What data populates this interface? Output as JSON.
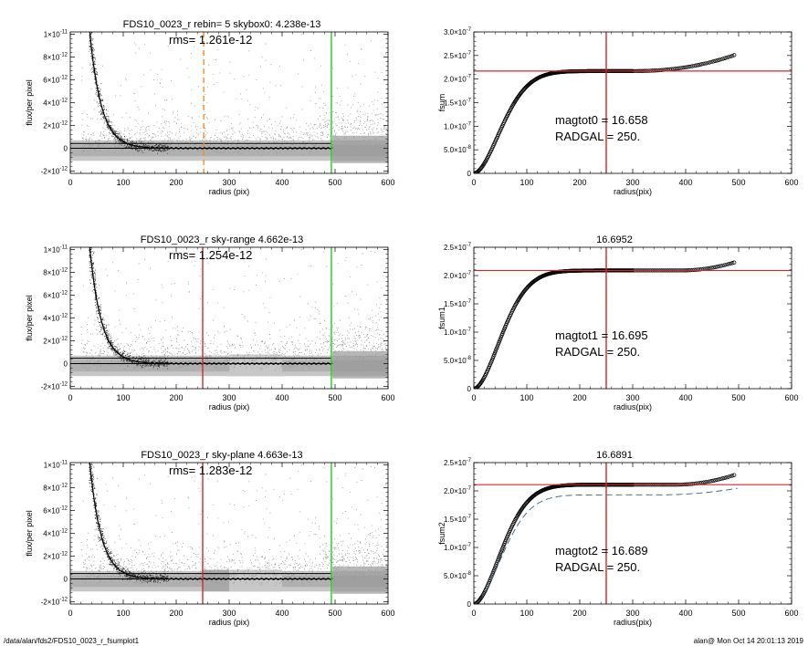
{
  "footer": {
    "path": "/data/alan/fds2/FDS10_0023_r_fsumplot1",
    "stamp": "alan@  Mon Oct 14 20:01:13 2019"
  },
  "colors": {
    "scatter_dark": "#333333",
    "scatter_gray": "#999999",
    "scatter_light": "#c8c8c8",
    "profile": "#000000",
    "orange_marker": "#ff8c1a",
    "red_marker": "#d62728",
    "green_marker": "#22cc22",
    "growth_points": "#000000",
    "dashed_curve": "#3a5f7a"
  },
  "chart_data": [
    {
      "type": "scatter",
      "title": "FDS10_0023_r rebin= 5    skybox0:  4.238e-13",
      "annotation": "rms= 1.261e-12",
      "xlabel": "radius (pix)",
      "ylabel": "flux/per pixel",
      "xlim": [
        0,
        600
      ],
      "ylim": [
        -2.2e-12,
        1.02e-11
      ],
      "xticks": [
        0,
        100,
        200,
        300,
        400,
        500,
        600
      ],
      "yticks": [
        -2e-12,
        0,
        2e-12,
        4e-12,
        6e-12,
        8e-12,
        1e-11
      ],
      "ytick_labels": [
        {
          "m": "-2×10",
          "e": "-12"
        },
        {
          "m": "0",
          "e": ""
        },
        {
          "m": "2×10",
          "e": "-12"
        },
        {
          "m": "4×10",
          "e": "-12"
        },
        {
          "m": "6×10",
          "e": "-12"
        },
        {
          "m": "8×10",
          "e": "-12"
        },
        {
          "m": "1×10",
          "e": "-11"
        }
      ],
      "profile_model": {
        "amplitude": 1.1e-11,
        "scale_radius": 22,
        "start_radius": 35,
        "end_radius": 495
      },
      "hlines": [
        {
          "y": 4.2e-13
        },
        {
          "y": 0
        }
      ],
      "vlines": [
        {
          "x": 252,
          "color": "orange",
          "style": "dashed"
        },
        {
          "x": 493,
          "color": "green",
          "style": "solid"
        }
      ],
      "shading_bands": []
    },
    {
      "type": "scatter",
      "title": "FDS10_0023_r sky-range  4.662e-13",
      "annotation": "rms= 1.254e-12",
      "xlabel": "radius (pix)",
      "ylabel": "flux/per pixel",
      "xlim": [
        0,
        600
      ],
      "ylim": [
        -2.2e-12,
        1.02e-11
      ],
      "xticks": [
        0,
        100,
        200,
        300,
        400,
        500,
        600
      ],
      "yticks": [
        -2e-12,
        0,
        2e-12,
        4e-12,
        6e-12,
        8e-12,
        1e-11
      ],
      "ytick_labels": [
        {
          "m": "-2×10",
          "e": "-12"
        },
        {
          "m": "0",
          "e": ""
        },
        {
          "m": "2×10",
          "e": "-12"
        },
        {
          "m": "4×10",
          "e": "-12"
        },
        {
          "m": "6×10",
          "e": "-12"
        },
        {
          "m": "8×10",
          "e": "-12"
        },
        {
          "m": "1×10",
          "e": "-11"
        }
      ],
      "profile_model": {
        "amplitude": 1.1e-11,
        "scale_radius": 22,
        "start_radius": 35,
        "end_radius": 495
      },
      "hlines": [
        {
          "y": 4.7e-13
        },
        {
          "y": 0
        }
      ],
      "vlines": [
        {
          "x": 250,
          "color": "red",
          "style": "solid"
        },
        {
          "x": 493,
          "color": "green",
          "style": "solid"
        }
      ],
      "shading_bands": [
        {
          "x0": 300,
          "x1": 400,
          "shade": "light"
        }
      ]
    },
    {
      "type": "scatter",
      "title": "FDS10_0023_r sky-plane  4.663e-13",
      "annotation": "rms= 1.283e-12",
      "xlabel": "radius (pix)",
      "ylabel": "flux/per pixel",
      "xlim": [
        0,
        600
      ],
      "ylim": [
        -2.2e-12,
        1.02e-11
      ],
      "xticks": [
        0,
        100,
        200,
        300,
        400,
        500,
        600
      ],
      "yticks": [
        -2e-12,
        0,
        2e-12,
        4e-12,
        6e-12,
        8e-12,
        1e-11
      ],
      "ytick_labels": [
        {
          "m": "-2×10",
          "e": "-12"
        },
        {
          "m": "0",
          "e": ""
        },
        {
          "m": "2×10",
          "e": "-12"
        },
        {
          "m": "4×10",
          "e": "-12"
        },
        {
          "m": "6×10",
          "e": "-12"
        },
        {
          "m": "8×10",
          "e": "-12"
        },
        {
          "m": "1×10",
          "e": "-11"
        }
      ],
      "profile_model": {
        "amplitude": 1.1e-11,
        "scale_radius": 22,
        "start_radius": 35,
        "end_radius": 495
      },
      "hlines": [
        {
          "y": 4.7e-13
        },
        {
          "y": 0
        }
      ],
      "vlines": [
        {
          "x": 250,
          "color": "red",
          "style": "solid"
        },
        {
          "x": 493,
          "color": "green",
          "style": "solid"
        }
      ],
      "shading_bands": [
        {
          "x0": 250,
          "x1": 300,
          "shade": "mid"
        },
        {
          "x0": 300,
          "x1": 400,
          "shade": "light"
        }
      ]
    },
    {
      "type": "scatter",
      "title": "",
      "xlabel": "radius(pix)",
      "ylabel": "fsum",
      "xlim": [
        0,
        600
      ],
      "ylim": [
        0,
        3e-07
      ],
      "xticks": [
        0,
        100,
        200,
        300,
        400,
        500,
        600
      ],
      "yticks": [
        0,
        5e-08,
        1e-07,
        1.5e-07,
        2e-07,
        2.5e-07,
        3e-07
      ],
      "ytick_labels": [
        {
          "m": "0",
          "e": ""
        },
        {
          "m": "5.0×10",
          "e": "-8"
        },
        {
          "m": "1.0×10",
          "e": "-7"
        },
        {
          "m": "1.5×10",
          "e": "-7"
        },
        {
          "m": "2.0×10",
          "e": "-7"
        },
        {
          "m": "2.5×10",
          "e": "-7"
        },
        {
          "m": "3.0×10",
          "e": "-7"
        }
      ],
      "annotation_lines": [
        "magtot0 =  16.658",
        "RADGAL =    250."
      ],
      "growth": {
        "plateau": 2.17e-07,
        "rise_radius": 70,
        "tail": 3.5e-08,
        "tail_start": 300,
        "tail_end": 495,
        "tail_power": 2.2
      },
      "hline": {
        "y": 2.17e-07
      },
      "vline": {
        "x": 250
      },
      "dashed_curve": null
    },
    {
      "type": "scatter",
      "title": "16.6952",
      "xlabel": "radius(pix)",
      "ylabel": "fsum1",
      "xlim": [
        0,
        600
      ],
      "ylim": [
        0,
        2.5e-07
      ],
      "xticks": [
        0,
        100,
        200,
        300,
        400,
        500,
        600
      ],
      "yticks": [
        0,
        5e-08,
        1e-07,
        1.5e-07,
        2e-07,
        2.5e-07
      ],
      "ytick_labels": [
        {
          "m": "0",
          "e": ""
        },
        {
          "m": "5.0×10",
          "e": "-8"
        },
        {
          "m": "1.0×10",
          "e": "-7"
        },
        {
          "m": "1.5×10",
          "e": "-7"
        },
        {
          "m": "2.0×10",
          "e": "-7"
        },
        {
          "m": "2.5×10",
          "e": "-7"
        }
      ],
      "annotation_lines": [
        "magtot1 =  16.695",
        "RADGAL =    250."
      ],
      "growth": {
        "plateau": 2.09e-07,
        "rise_radius": 70,
        "tail": 1.5e-08,
        "tail_start": 390,
        "tail_end": 495,
        "tail_power": 2.0
      },
      "hline": {
        "y": 2.09e-07
      },
      "vline": {
        "x": 250
      },
      "dashed_curve": null
    },
    {
      "type": "scatter",
      "title": "16.6891",
      "xlabel": "radius(pix)",
      "ylabel": "fsum2",
      "xlim": [
        0,
        600
      ],
      "ylim": [
        0,
        2.5e-07
      ],
      "xticks": [
        0,
        100,
        200,
        300,
        400,
        500,
        600
      ],
      "yticks": [
        0,
        5e-08,
        1e-07,
        1.5e-07,
        2e-07,
        2.5e-07
      ],
      "ytick_labels": [
        {
          "m": "0",
          "e": ""
        },
        {
          "m": "5.0×10",
          "e": "-8"
        },
        {
          "m": "1.0×10",
          "e": "-7"
        },
        {
          "m": "1.5×10",
          "e": "-7"
        },
        {
          "m": "2.0×10",
          "e": "-7"
        },
        {
          "m": "2.5×10",
          "e": "-7"
        }
      ],
      "annotation_lines": [
        "magtot2 =  16.689",
        "RADGAL =    250."
      ],
      "growth": {
        "plateau": 2.11e-07,
        "rise_radius": 70,
        "tail": 1.8e-08,
        "tail_start": 380,
        "tail_end": 495,
        "tail_power": 2.0
      },
      "hline": {
        "y": 2.11e-07
      },
      "vline": {
        "x": 250
      },
      "dashed_curve": {
        "plateau": 1.93e-07,
        "rise_radius": 72,
        "x_end": 500,
        "end_value": 2.05e-07
      }
    }
  ]
}
